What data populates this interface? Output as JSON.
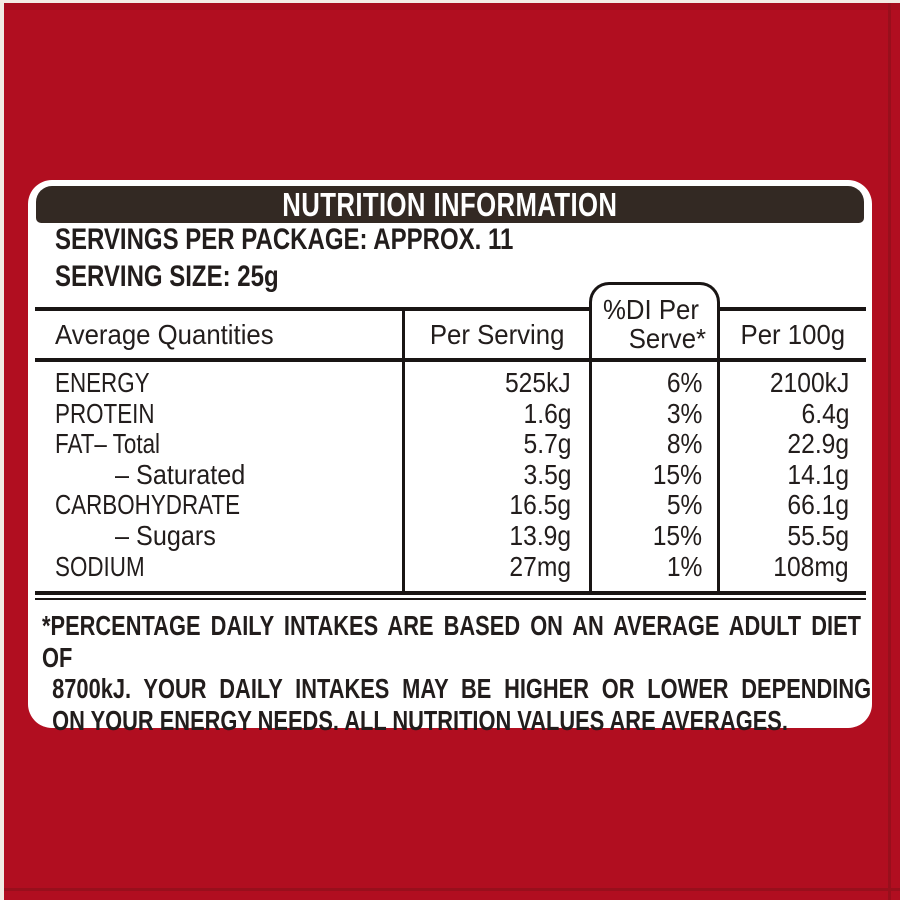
{
  "colors": {
    "background_red": "#b10e20",
    "panel_white": "#ffffff",
    "titlebar_brown_black": "#332923",
    "rule_black": "#191514",
    "text_black": "#221d1c"
  },
  "title": "NUTRITION INFORMATION",
  "servings_per_package": "SERVINGS PER PACKAGE: APPROX. 11",
  "serving_size": "SERVING SIZE: 25g",
  "table": {
    "columns": {
      "average_quantities": "Average Quantities",
      "per_serving": "Per Serving",
      "di_line1": "%DI Per",
      "di_line2": "Serve*",
      "per_100g": "Per 100g"
    },
    "rows": [
      {
        "label": "ENERGY",
        "per_serving": "525kJ",
        "di_per_serve": "6%",
        "per_100g": "2100kJ"
      },
      {
        "label": "PROTEIN",
        "per_serving": "1.6g",
        "di_per_serve": "3%",
        "per_100g": "6.4g"
      },
      {
        "label": "FAT– Total",
        "per_serving": "5.7g",
        "di_per_serve": "8%",
        "per_100g": "22.9g"
      },
      {
        "label": "– Saturated",
        "per_serving": "3.5g",
        "di_per_serve": "15%",
        "per_100g": "14.1g"
      },
      {
        "label": "CARBOHYDRATE",
        "per_serving": "16.5g",
        "di_per_serve": "5%",
        "per_100g": "66.1g"
      },
      {
        "label": "– Sugars",
        "per_serving": "13.9g",
        "di_per_serve": "15%",
        "per_100g": "55.5g"
      },
      {
        "label": "SODIUM",
        "per_serving": "27mg",
        "di_per_serve": "1%",
        "per_100g": "108mg"
      }
    ]
  },
  "footnote": {
    "lines": [
      "*PERCENTAGE DAILY INTAKES ARE BASED ON AN AVERAGE ADULT DIET OF",
      "8700kJ. YOUR DAILY INTAKES MAY BE HIGHER OR LOWER DEPENDING",
      "ON YOUR ENERGY NEEDS. ALL NUTRITION VALUES ARE AVERAGES."
    ]
  }
}
